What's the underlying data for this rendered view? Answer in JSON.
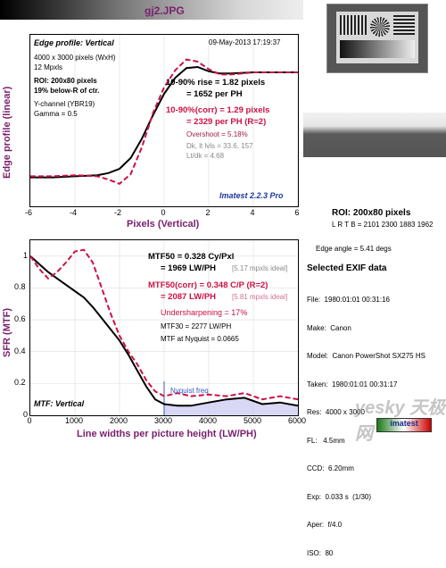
{
  "header": {
    "title": "gj2.JPG"
  },
  "edge": {
    "box_title": "Edge profile: Vertical",
    "date": "09-May-2013 17:19:37",
    "info": [
      "4000 x 3000 pixels (WxH)",
      "12 Mpxls"
    ],
    "roi": [
      "ROI: 200x80 pixels",
      "19% below-R of ctr."
    ],
    "channel": [
      "Y-channel  (YBR19)",
      "Gamma = 0.5"
    ],
    "rise": [
      "10-90% rise = 1.82 pixels",
      "= 1652 per PH"
    ],
    "rise_corr": [
      "10-90%(corr) = 1.29 pixels",
      "= 2329 per PH  (R=2)"
    ],
    "overshoot": "Overshoot = 5.18%",
    "dk": [
      "Dk, lt lvls = 33.6, 157",
      "Lt/dk = 4.68"
    ],
    "version": "Imatest 2.2.3 Pro",
    "ylabel": "Edge profile (linear)",
    "xlabel": "Pixels (Vertical)",
    "xticks": [
      "-6",
      "-4",
      "-2",
      "0",
      "2",
      "4",
      "6"
    ]
  },
  "mtf": {
    "mtf50": [
      "MTF50 = 0.328 Cy/Pxl",
      "= 1969 LW/PH"
    ],
    "mtf50_ideal": "[5.17 mpxls ideal]",
    "mtf50c": [
      "MTF50(corr) = 0.348 C/P  (R=2)",
      "= 2087 LW/PH"
    ],
    "mtf50c_ideal": "[5.81 mpxls ideal]",
    "under": "Undersharpening = 17%",
    "mtf30": "MTF30 = 2277 LW/PH",
    "nyq": "MTF at Nyquist = 0.0665",
    "nyq_label": "Nyquist freq",
    "box_title": "MTF: Vertical",
    "ylabel": "SFR (MTF)",
    "xlabel": "Line widths per picture height (LW/PH)",
    "xticks": [
      "0",
      "1000",
      "2000",
      "3000",
      "4000",
      "5000",
      "6000"
    ],
    "yticks": [
      "1",
      "0.8",
      "0.6",
      "0.4",
      "0.2",
      "0"
    ]
  },
  "side": {
    "roi_title": "ROI: 200x80 pixels",
    "lrtb": "L R T B = 2101 2300  1883 1962",
    "edge_angle": "Edge angle = 5.41 degs",
    "exif_title": "Selected EXIF data",
    "exif": [
      "File:  1980:01:01 00:31:16",
      "Make:  Canon",
      "Model:  Canon PowerShot SX275 HS",
      "Taken:  1980:01:01 00:31:17",
      "Res:  4000 x 3000",
      "FL:   4.5mm",
      "CCD:  6.20mm",
      "Exp:  0.033 s  (1/30)",
      "Aper:  f/4.0",
      "ISO:  80"
    ],
    "watermark": "yesky 天极网",
    "brand": "imatest"
  },
  "chart_data": [
    {
      "type": "line",
      "title": "Edge profile: Vertical",
      "xlabel": "Pixels (Vertical)",
      "ylabel": "Edge profile (linear)",
      "xlim": [
        -6,
        6
      ],
      "series": [
        {
          "name": "raw",
          "x": [
            -6,
            -5,
            -4,
            -3,
            -2.5,
            -2,
            -1.5,
            -1,
            -0.5,
            0,
            0.5,
            1,
            1.5,
            2,
            2.5,
            3,
            4,
            5,
            6
          ],
          "y": [
            0.02,
            0.02,
            0.03,
            0.04,
            0.06,
            0.1,
            0.2,
            0.38,
            0.6,
            0.8,
            0.95,
            1.04,
            1.05,
            1.01,
            0.99,
            0.99,
            1.0,
            1.0,
            1.0
          ]
        },
        {
          "name": "corr",
          "x": [
            -6,
            -5,
            -4,
            -3,
            -2.5,
            -2,
            -1.5,
            -1,
            -0.5,
            0,
            0.5,
            1,
            1.5,
            2,
            2.5,
            3,
            4,
            5,
            6
          ],
          "y": [
            0.03,
            0.03,
            0.04,
            0.03,
            0.0,
            -0.04,
            0.05,
            0.3,
            0.62,
            0.86,
            1.02,
            1.12,
            1.1,
            1.03,
            0.98,
            0.98,
            1.0,
            1.0,
            1.0
          ]
        }
      ]
    },
    {
      "type": "line",
      "title": "MTF: Vertical",
      "xlabel": "Line widths per picture height (LW/PH)",
      "ylabel": "SFR (MTF)",
      "xlim": [
        0,
        6000
      ],
      "ylim": [
        0,
        1.1
      ],
      "series": [
        {
          "name": "MTF",
          "x": [
            0,
            200,
            400,
            600,
            800,
            1000,
            1200,
            1400,
            1600,
            1800,
            2000,
            2200,
            2400,
            2600,
            2800,
            3000,
            3300,
            3600,
            4000,
            4400,
            4800,
            5200,
            5600,
            6000
          ],
          "y": [
            1.0,
            0.95,
            0.9,
            0.86,
            0.82,
            0.78,
            0.74,
            0.68,
            0.61,
            0.54,
            0.47,
            0.38,
            0.28,
            0.18,
            0.1,
            0.07,
            0.06,
            0.06,
            0.08,
            0.1,
            0.11,
            0.07,
            0.08,
            0.06
          ]
        },
        {
          "name": "MTF(corr)",
          "x": [
            0,
            200,
            400,
            600,
            800,
            1000,
            1200,
            1400,
            1600,
            1800,
            2000,
            2200,
            2400,
            2600,
            2800,
            3000,
            3300,
            3600,
            4000,
            4400,
            4800,
            5200,
            5600,
            6000
          ],
          "y": [
            1.0,
            0.92,
            0.86,
            0.9,
            0.96,
            1.03,
            1.04,
            0.96,
            0.8,
            0.64,
            0.5,
            0.4,
            0.32,
            0.22,
            0.15,
            0.12,
            0.14,
            0.12,
            0.13,
            0.12,
            0.14,
            0.1,
            0.12,
            0.1
          ]
        }
      ],
      "nyquist": 3000
    }
  ]
}
